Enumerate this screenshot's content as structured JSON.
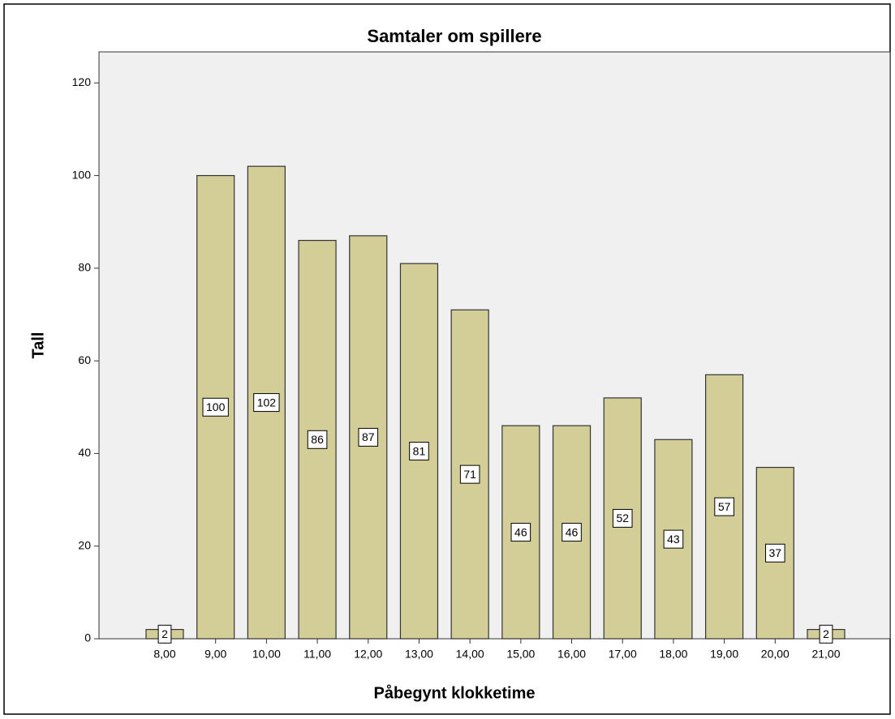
{
  "chart_data": {
    "type": "bar",
    "title": "Samtaler om spillere",
    "x_label": "Påbegynt klokketime",
    "y_label": "Tall",
    "categories": [
      "8,00",
      "9,00",
      "10,00",
      "11,00",
      "12,00",
      "13,00",
      "14,00",
      "15,00",
      "16,00",
      "17,00",
      "18,00",
      "19,00",
      "20,00",
      "21,00"
    ],
    "values": [
      2,
      100,
      102,
      86,
      87,
      81,
      71,
      46,
      46,
      52,
      43,
      57,
      37,
      2
    ],
    "color": "#d3ce97",
    "ylim": [
      0,
      126.7
    ],
    "yticks": [
      0,
      20,
      40,
      60,
      80,
      100,
      120
    ],
    "grid": false
  }
}
